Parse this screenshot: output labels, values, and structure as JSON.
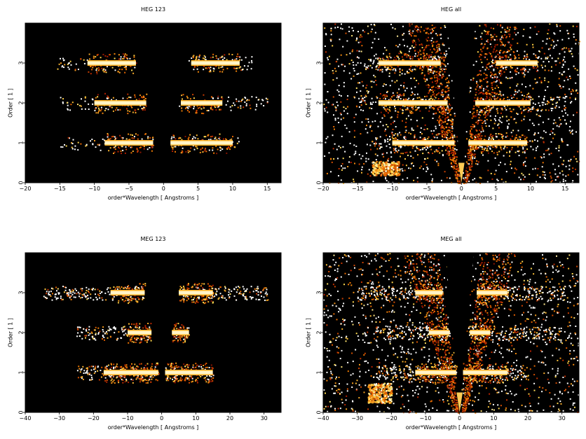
{
  "chart_data": [
    {
      "type": "heatmap",
      "title": "HEG 123",
      "xlabel": "order*Wavelength [ Angstroms ]",
      "ylabel": "Order [ 1 ]",
      "xlim": [
        -20,
        17
      ],
      "ylim": [
        0,
        4
      ],
      "xticks": [
        -20,
        -15,
        -10,
        -5,
        0,
        5,
        10,
        15
      ],
      "yticks": [
        0,
        1,
        2,
        3
      ],
      "background": "#000000",
      "bands": [
        {
          "order": 1,
          "neg": [
            -15,
            -1.5
          ],
          "pos": [
            1,
            11
          ],
          "core_neg": [
            -8.5,
            -1.5
          ],
          "core_pos": [
            1,
            10
          ]
        },
        {
          "order": 2,
          "neg": [
            -15,
            -2.5
          ],
          "pos": [
            2,
            15
          ],
          "core_neg": [
            -10,
            -2.5
          ],
          "core_pos": [
            2.5,
            8.5
          ]
        },
        {
          "order": 3,
          "neg": [
            -16,
            -4
          ],
          "pos": [
            3.5,
            13
          ],
          "core_neg": [
            -11,
            -4
          ],
          "core_pos": [
            4,
            11
          ]
        }
      ],
      "wedge": false,
      "blob": null
    },
    {
      "type": "heatmap",
      "title": "HEG all",
      "xlabel": "order*Wavelength [ Angstroms ]",
      "ylabel": "Order [ 1 ]",
      "xlim": [
        -20,
        17
      ],
      "ylim": [
        0,
        4
      ],
      "xticks": [
        -20,
        -15,
        -10,
        -5,
        0,
        5,
        10,
        15
      ],
      "yticks": [
        0,
        1,
        2,
        3
      ],
      "background": "#000000",
      "bands": [
        {
          "order": 1,
          "neg": [
            -13,
            -1
          ],
          "pos": [
            1,
            11
          ],
          "core_neg": [
            -10,
            -1
          ],
          "core_pos": [
            1,
            9.5
          ]
        },
        {
          "order": 2,
          "neg": [
            -15,
            -2
          ],
          "pos": [
            2,
            15
          ],
          "core_neg": [
            -12,
            -2
          ],
          "core_pos": [
            2,
            10
          ]
        },
        {
          "order": 3,
          "neg": [
            -16,
            -3
          ],
          "pos": [
            4,
            15
          ],
          "core_neg": [
            -12,
            -3
          ],
          "core_pos": [
            5,
            11
          ]
        }
      ],
      "wedge": true,
      "blob": {
        "x": [
          -13,
          -9
        ],
        "y": [
          0.2,
          0.55
        ]
      }
    },
    {
      "type": "heatmap",
      "title": "MEG 123",
      "xlabel": "order*Wavelength [ Angstroms ]",
      "ylabel": "Order [ 1 ]",
      "xlim": [
        -40,
        35
      ],
      "ylim": [
        0,
        4
      ],
      "xticks": [
        -40,
        -30,
        -20,
        -10,
        0,
        10,
        20,
        30
      ],
      "yticks": [
        0,
        1,
        2,
        3
      ],
      "background": "#000000",
      "bands": [
        {
          "order": 1,
          "neg": [
            -25,
            -1
          ],
          "pos": [
            1,
            15
          ],
          "core_neg": [
            -17,
            -1
          ],
          "core_pos": [
            1,
            15
          ]
        },
        {
          "order": 2,
          "neg": [
            -25,
            -3
          ],
          "pos": [
            3,
            8
          ],
          "core_neg": [
            -10,
            -3
          ],
          "core_pos": [
            3,
            8
          ]
        },
        {
          "order": 3,
          "neg": [
            -35,
            -5
          ],
          "pos": [
            5,
            31
          ],
          "core_neg": [
            -15,
            -5
          ],
          "core_pos": [
            5,
            15
          ]
        }
      ],
      "wedge": false,
      "blob": null
    },
    {
      "type": "heatmap",
      "title": "MEG all",
      "xlabel": "order*Wavelength [ Angstroms ]",
      "ylabel": "Order [ 1 ]",
      "xlim": [
        -40,
        35
      ],
      "ylim": [
        0,
        4
      ],
      "xticks": [
        -40,
        -30,
        -20,
        -10,
        0,
        10,
        20,
        30
      ],
      "yticks": [
        0,
        1,
        2,
        3
      ],
      "background": "#000000",
      "bands": [
        {
          "order": 1,
          "neg": [
            -25,
            -1
          ],
          "pos": [
            1,
            20
          ],
          "core_neg": [
            -13,
            -1
          ],
          "core_pos": [
            1,
            14
          ]
        },
        {
          "order": 2,
          "neg": [
            -25,
            -3
          ],
          "pos": [
            3,
            30
          ],
          "core_neg": [
            -9,
            -3
          ],
          "core_pos": [
            3,
            9
          ]
        },
        {
          "order": 3,
          "neg": [
            -30,
            -5
          ],
          "pos": [
            5,
            31
          ],
          "core_neg": [
            -13,
            -5
          ],
          "core_pos": [
            5,
            14
          ]
        }
      ],
      "wedge": true,
      "blob": {
        "x": [
          -27,
          -20
        ],
        "y": [
          0.25,
          0.75
        ]
      }
    }
  ]
}
